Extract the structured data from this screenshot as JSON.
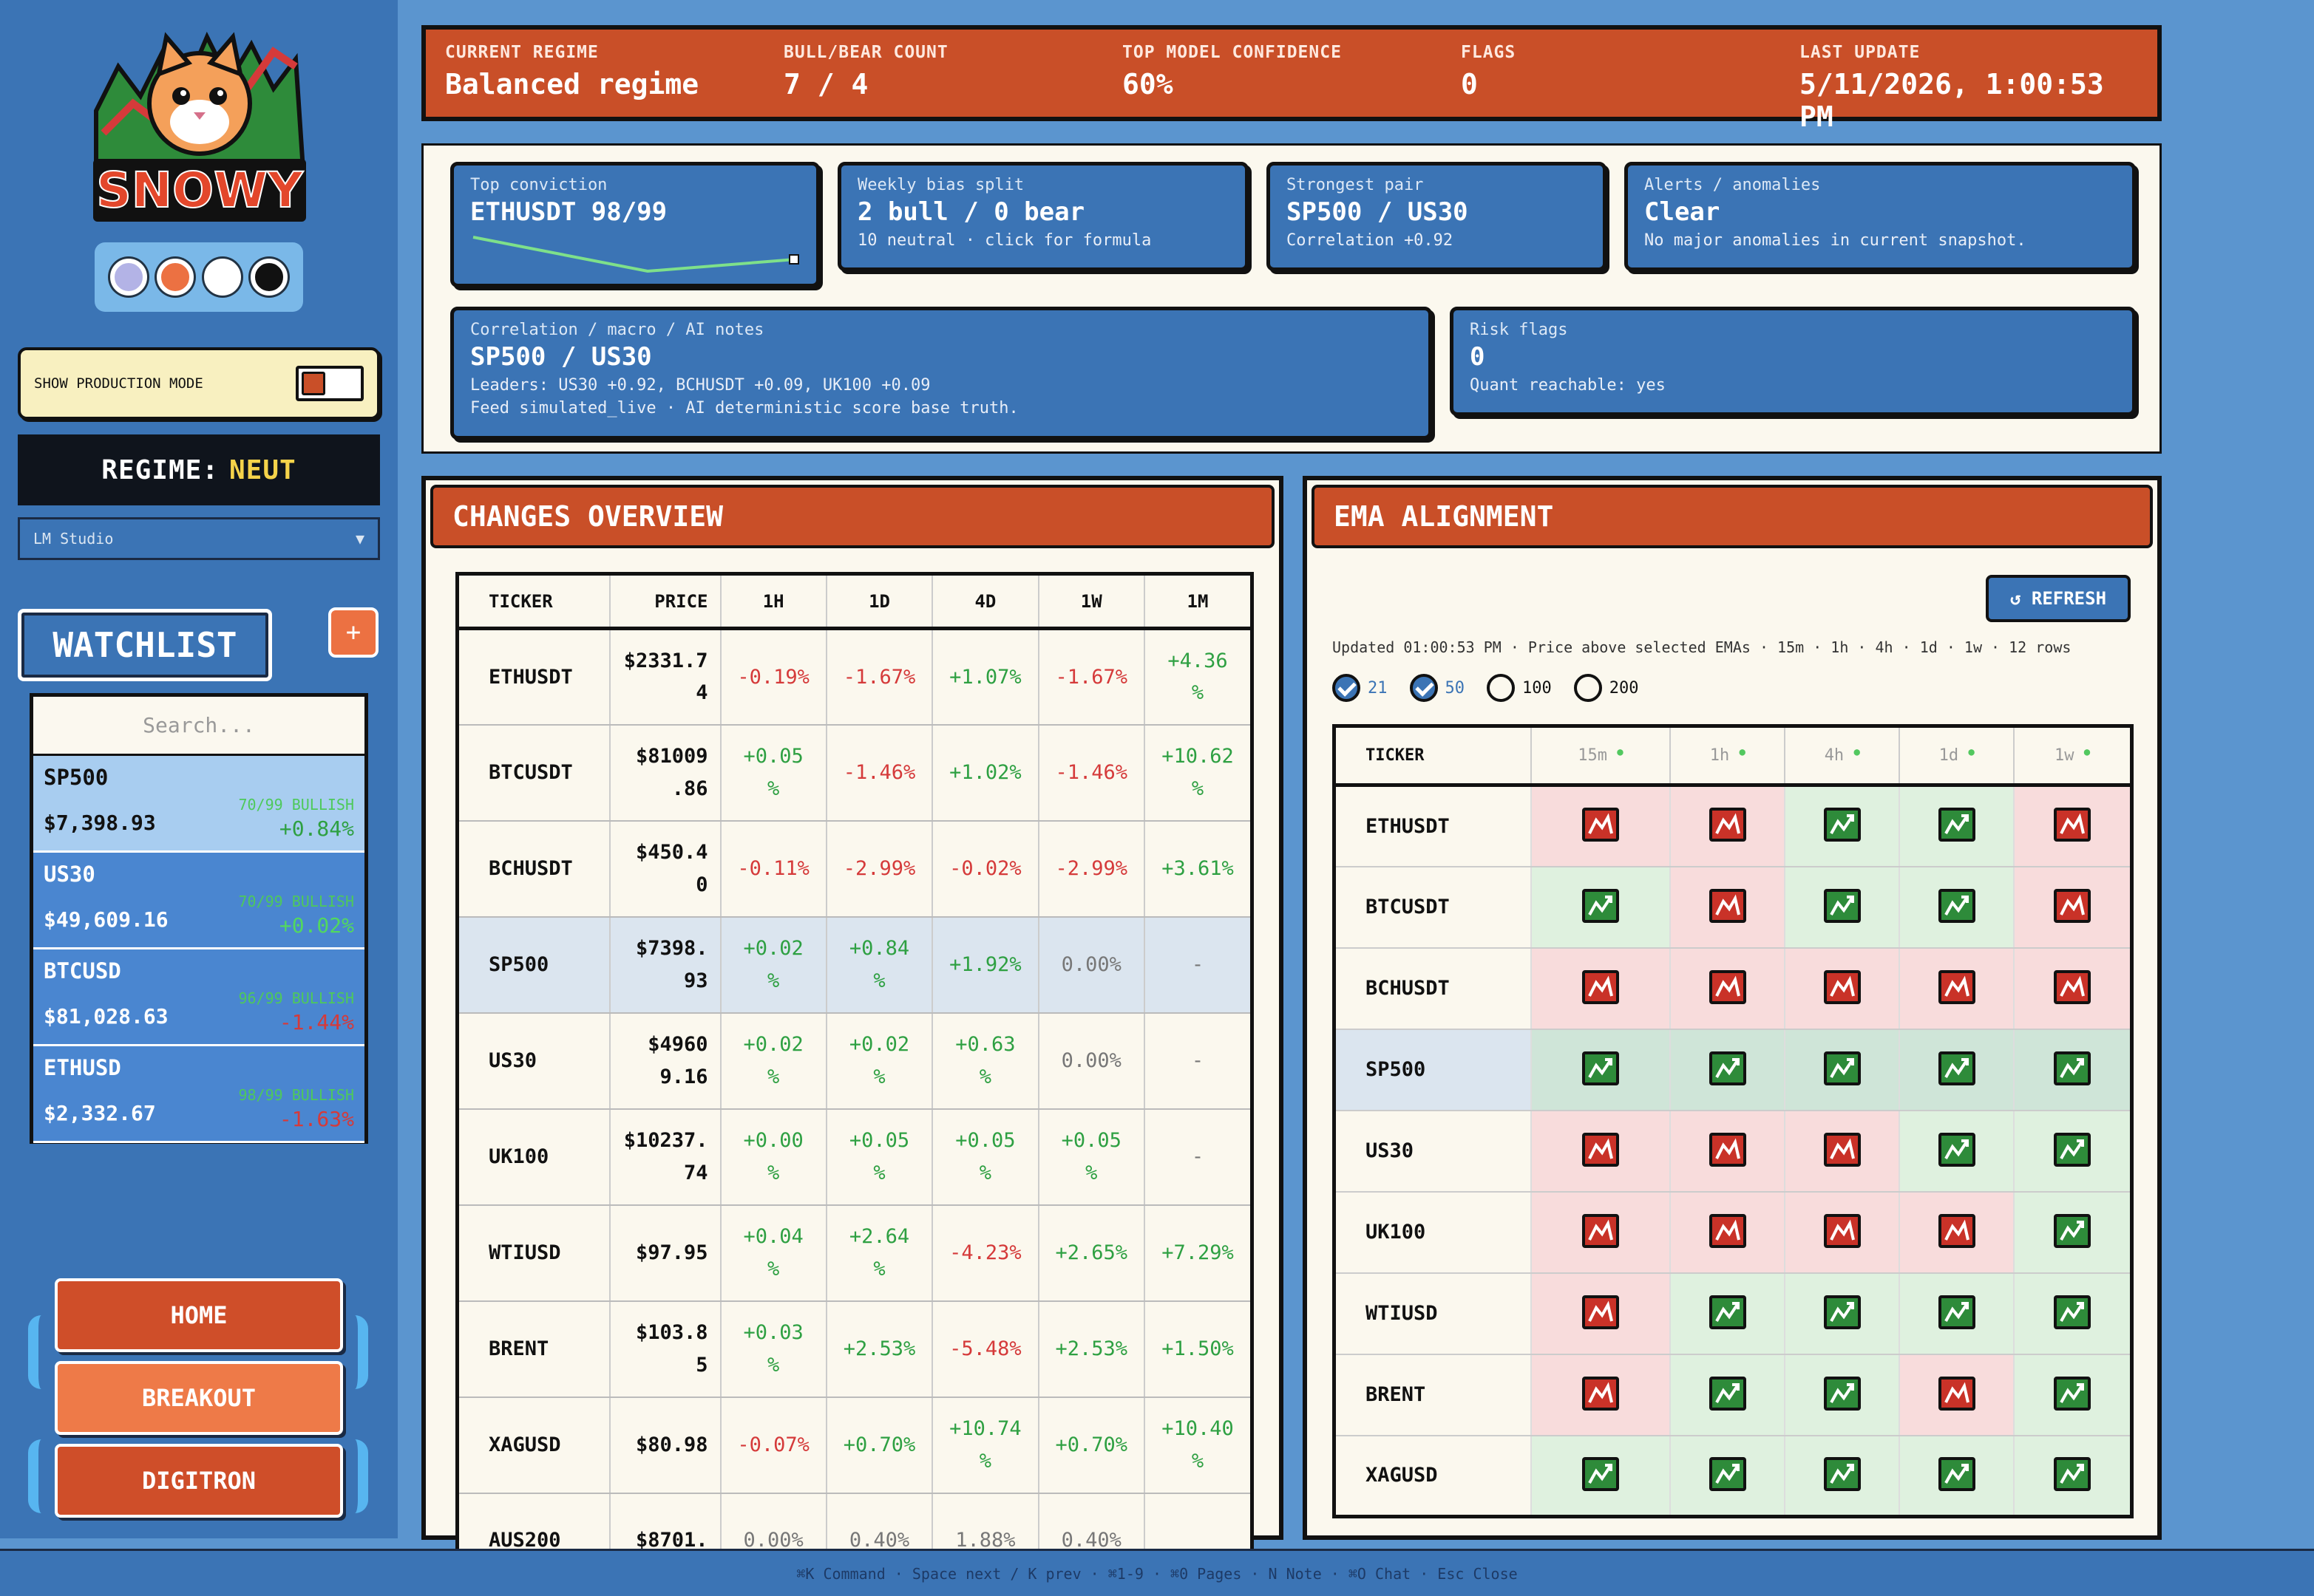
{
  "sidebar": {
    "logo_text": "SNOWY",
    "theme_colors": [
      "#b3b3e6",
      "#ec7142",
      "#ffffff",
      "#111111"
    ],
    "prod_mode_label": "SHOW PRODUCTION MODE",
    "regime_label": "REGIME:",
    "regime_value": "NEUT",
    "model_select": "LM Studio",
    "watchlist_title": "WATCHLIST",
    "add_label": "+",
    "search_placeholder": "Search...",
    "watchlist": [
      {
        "ticker": "SP500",
        "price": "$7,398.93",
        "conf": "70/99 BULLISH",
        "change": "+0.84%",
        "dir": "up"
      },
      {
        "ticker": "US30",
        "price": "$49,609.16",
        "conf": "70/99 BULLISH",
        "change": "+0.02%",
        "dir": "up"
      },
      {
        "ticker": "BTCUSD",
        "price": "$81,028.63",
        "conf": "96/99 BULLISH",
        "change": "-1.44%",
        "dir": "dn"
      },
      {
        "ticker": "ETHUSD",
        "price": "$2,332.67",
        "conf": "98/99 BULLISH",
        "change": "-1.63%",
        "dir": "dn"
      }
    ],
    "nav": [
      "HOME",
      "BREAKOUT",
      "DIGITRON"
    ]
  },
  "topbar": [
    {
      "label": "CURRENT REGIME",
      "value": "Balanced regime"
    },
    {
      "label": "BULL/BEAR COUNT",
      "value": "7 / 4"
    },
    {
      "label": "TOP MODEL CONFIDENCE",
      "value": "60%"
    },
    {
      "label": "FLAGS",
      "value": "0"
    },
    {
      "label": "LAST UPDATE",
      "value": "5/11/2026, 1:00:53 PM"
    }
  ],
  "cards": {
    "conviction": {
      "label": "Top conviction",
      "value": "ETHUSDT 98/99"
    },
    "bias": {
      "label": "Weekly bias split",
      "value": "2 bull / 0 bear",
      "sub": "10 neutral · click for formula"
    },
    "pair": {
      "label": "Strongest pair",
      "value": "SP500 / US30",
      "sub": "Correlation +0.92"
    },
    "alerts": {
      "label": "Alerts / anomalies",
      "value": "Clear",
      "sub": "No major anomalies in current snapshot."
    },
    "corr": {
      "label": "Correlation / macro / AI notes",
      "value": "SP500 / US30",
      "sub1": "Leaders: US30 +0.92, BCHUSDT +0.09, UK100 +0.09",
      "sub2": "Feed simulated_live · AI deterministic score base truth."
    },
    "risk": {
      "label": "Risk flags",
      "value": "0",
      "sub": "Quant reachable: yes"
    }
  },
  "changes": {
    "title": "CHANGES OVERVIEW",
    "headers": [
      "TICKER",
      "PRICE",
      "1H",
      "1D",
      "4D",
      "1W",
      "1M"
    ],
    "rows": [
      {
        "t": "ETHUSDT",
        "p": "$2331.7\n4",
        "v": [
          "-0.19%",
          "-1.67%",
          "+1.07%",
          "-1.67%",
          "+4.36\n%"
        ]
      },
      {
        "t": "BTCUSDT",
        "p": "$81009\n.86",
        "v": [
          "+0.05\n%",
          "-1.46%",
          "+1.02%",
          "-1.46%",
          "+10.62\n%"
        ]
      },
      {
        "t": "BCHUSDT",
        "p": "$450.4\n0",
        "v": [
          "-0.11%",
          "-2.99%",
          "-0.02%",
          "-2.99%",
          "+3.61%"
        ]
      },
      {
        "t": "SP500",
        "p": "$7398.\n93",
        "v": [
          "+0.02\n%",
          "+0.84\n%",
          "+1.92%",
          "0.00%",
          "-"
        ],
        "hl": true
      },
      {
        "t": "US30",
        "p": "$4960\n9.16",
        "v": [
          "+0.02\n%",
          "+0.02\n%",
          "+0.63\n%",
          "0.00%",
          "-"
        ]
      },
      {
        "t": "UK100",
        "p": "$10237.\n74",
        "v": [
          "+0.00\n%",
          "+0.05\n%",
          "+0.05\n%",
          "+0.05\n%",
          "-"
        ]
      },
      {
        "t": "WTIUSD",
        "p": "$97.95",
        "v": [
          "+0.04\n%",
          "+2.64\n%",
          "-4.23%",
          "+2.65%",
          "+7.29%"
        ]
      },
      {
        "t": "BRENT",
        "p": "$103.8\n5",
        "v": [
          "+0.03\n%",
          "+2.53%",
          "-5.48%",
          "+2.53%",
          "+1.50%"
        ]
      },
      {
        "t": "XAGUSD",
        "p": "$80.98",
        "v": [
          "-0.07%",
          "+0.70%",
          "+10.74\n%",
          "+0.70%",
          "+10.40\n%"
        ]
      },
      {
        "t": "AUS200",
        "p": "$8701.",
        "v": [
          "0.00%",
          "0.40%",
          "1.88%",
          "0.40%",
          ""
        ]
      }
    ]
  },
  "ema": {
    "title": "EMA ALIGNMENT",
    "refresh": "↺ REFRESH",
    "info": "Updated 01:00:53 PM · Price above selected EMAs · 15m · 1h · 4h · 1d · 1w · 12 rows",
    "periods": [
      {
        "n": "21",
        "on": true
      },
      {
        "n": "50",
        "on": true
      },
      {
        "n": "100",
        "on": false
      },
      {
        "n": "200",
        "on": false
      }
    ],
    "headers": [
      "TICKER",
      "15m",
      "1h",
      "4h",
      "1d",
      "1w"
    ],
    "rows": [
      {
        "t": "ETHUSDT",
        "s": [
          "r",
          "r",
          "b",
          "b",
          "r"
        ]
      },
      {
        "t": "BTCUSDT",
        "s": [
          "b",
          "r",
          "b",
          "b",
          "r"
        ]
      },
      {
        "t": "BCHUSDT",
        "s": [
          "r",
          "r",
          "r",
          "r",
          "r"
        ]
      },
      {
        "t": "SP500",
        "s": [
          "b",
          "b",
          "b",
          "b",
          "b"
        ],
        "hl": true
      },
      {
        "t": "US30",
        "s": [
          "r",
          "r",
          "r",
          "b",
          "b"
        ]
      },
      {
        "t": "UK100",
        "s": [
          "r",
          "r",
          "r",
          "r",
          "b"
        ]
      },
      {
        "t": "WTIUSD",
        "s": [
          "r",
          "b",
          "b",
          "b",
          "b"
        ]
      },
      {
        "t": "BRENT",
        "s": [
          "r",
          "b",
          "b",
          "r",
          "b"
        ]
      },
      {
        "t": "XAGUSD",
        "s": [
          "b",
          "b",
          "b",
          "b",
          "b"
        ]
      }
    ]
  },
  "footer": "⌘K Command · Space next / K prev · ⌘1-9 · ⌘0 Pages · N Note · ⌘O Chat · Esc Close"
}
